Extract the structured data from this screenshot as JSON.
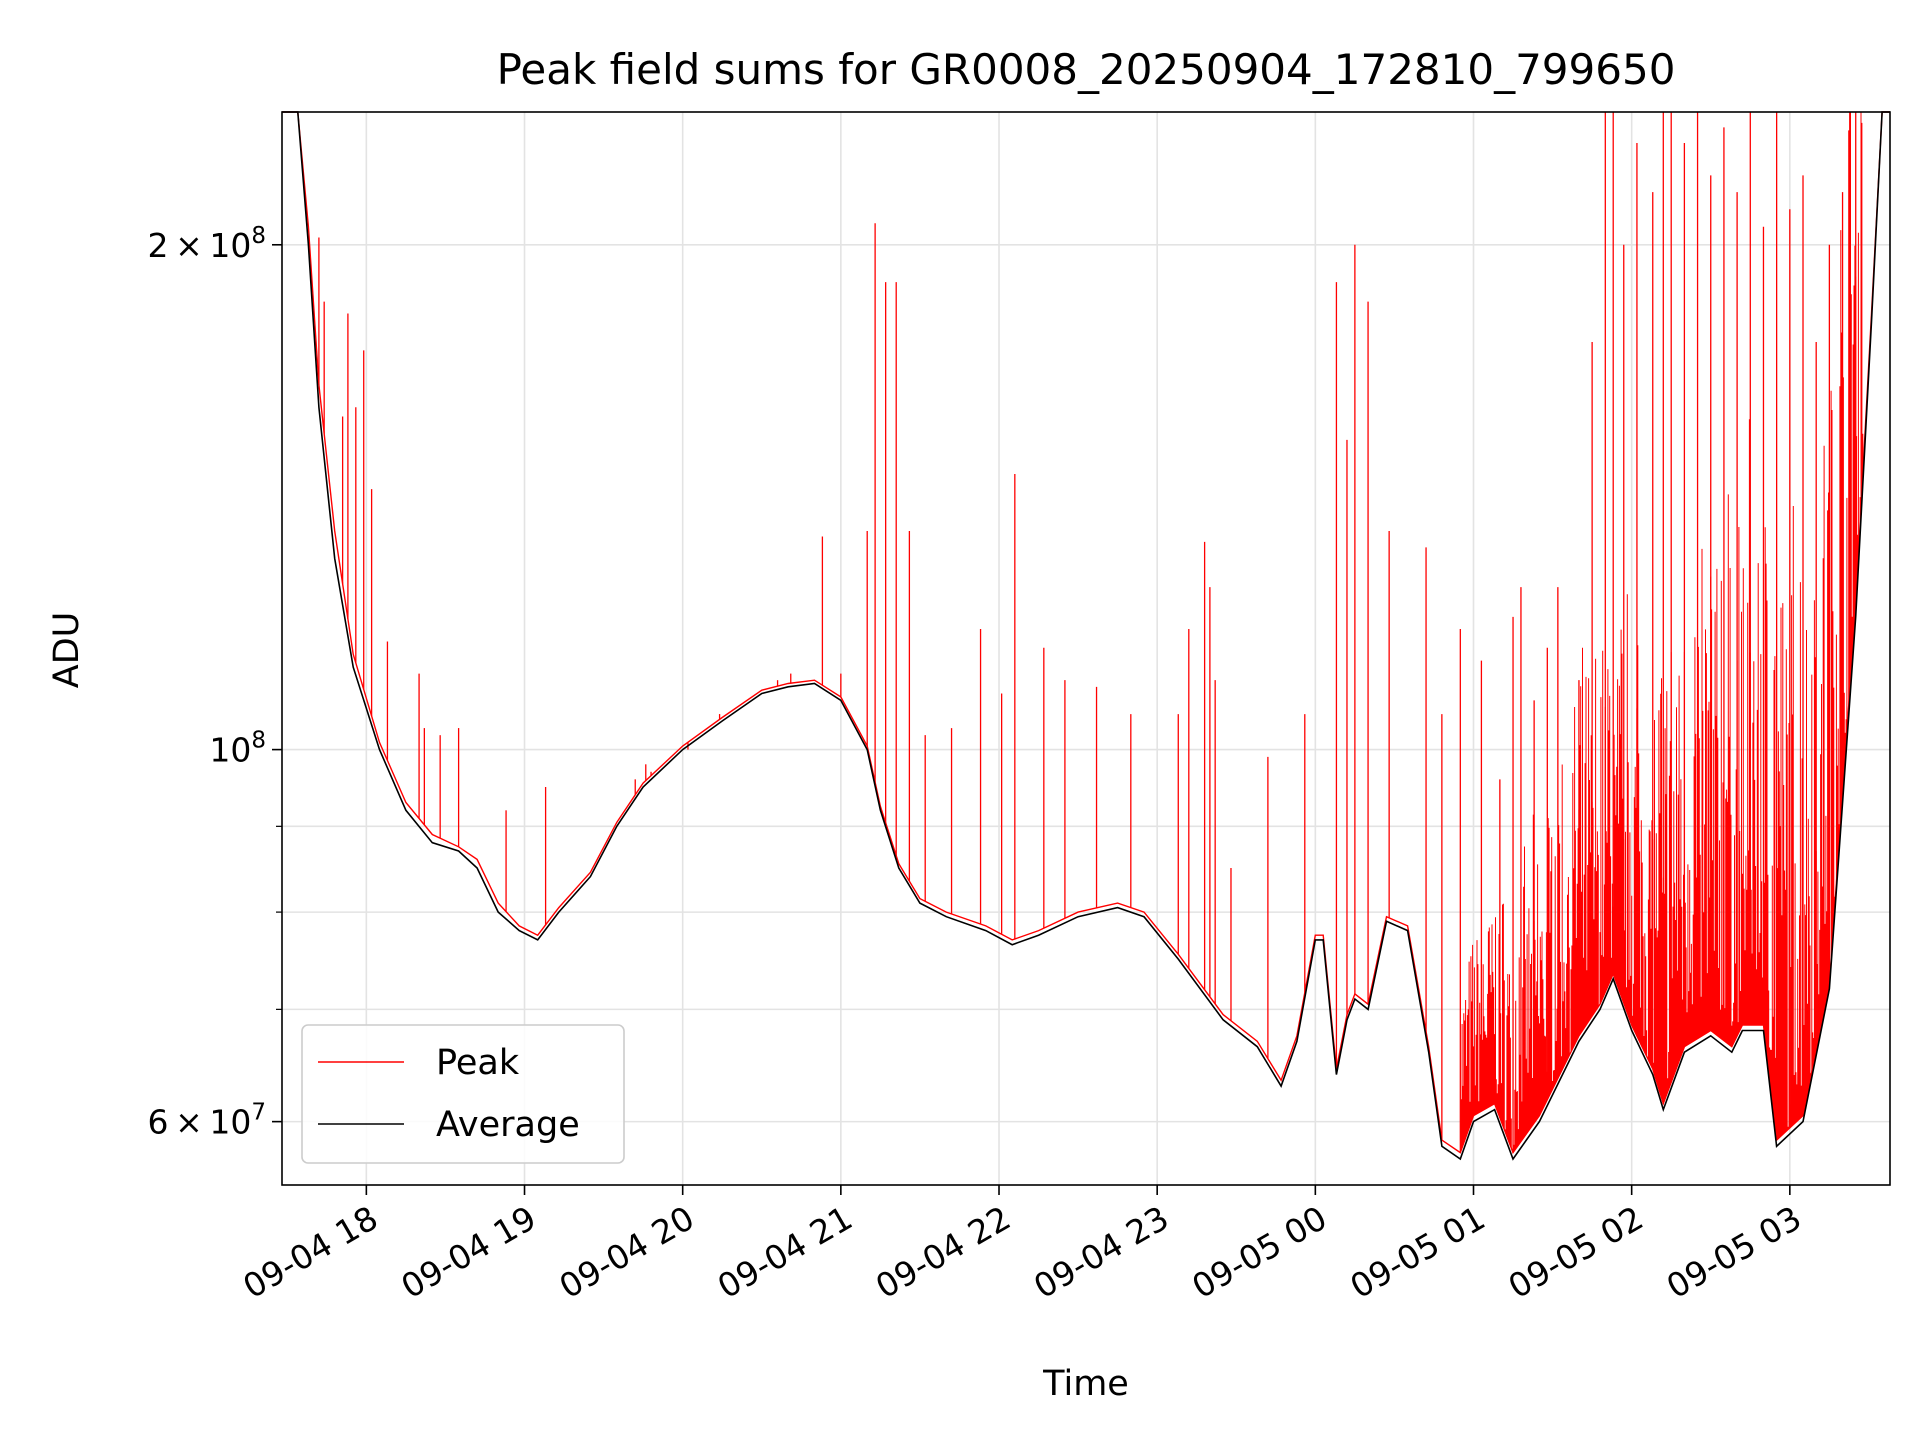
{
  "chart_data": {
    "type": "line",
    "title": "Peak field sums for GR0008_20250904_172810_799650",
    "xlabel": "Time",
    "ylabel": "ADU",
    "y_scale": "log",
    "ylim": [
      55000000,
      240000000
    ],
    "xlim": [
      "2025-09-04 17:28",
      "2025-09-05 03:38"
    ],
    "grid": true,
    "legend_position": "lower-left",
    "x_tick_labels": [
      "09-04 18",
      "09-04 19",
      "09-04 20",
      "09-04 21",
      "09-04 22",
      "09-04 23",
      "09-05 00",
      "09-05 01",
      "09-05 02",
      "09-05 03"
    ],
    "x_tick_times": [
      "2025-09-04 18:00",
      "2025-09-04 19:00",
      "2025-09-04 20:00",
      "2025-09-04 21:00",
      "2025-09-04 22:00",
      "2025-09-04 23:00",
      "2025-09-05 00:00",
      "2025-09-05 01:00",
      "2025-09-05 02:00",
      "2025-09-05 03:00"
    ],
    "y_major_ticks": [
      {
        "value": 60000000,
        "mantissa": "6",
        "exponent": "7"
      },
      {
        "value": 100000000,
        "mantissa": "",
        "exponent": "8"
      },
      {
        "value": 200000000,
        "mantissa": "2",
        "exponent": "8"
      }
    ],
    "y_minor_ticks": [
      70000000,
      80000000,
      90000000
    ],
    "series": [
      {
        "name": "Average",
        "color": "#000000",
        "x": [
          "2025-09-04 17:28",
          "2025-09-04 17:34",
          "2025-09-04 17:38",
          "2025-09-04 17:42",
          "2025-09-04 17:48",
          "2025-09-04 17:55",
          "2025-09-04 18:05",
          "2025-09-04 18:15",
          "2025-09-04 18:25",
          "2025-09-04 18:35",
          "2025-09-04 18:42",
          "2025-09-04 18:50",
          "2025-09-04 18:58",
          "2025-09-04 19:05",
          "2025-09-04 19:13",
          "2025-09-04 19:25",
          "2025-09-04 19:35",
          "2025-09-04 19:45",
          "2025-09-04 20:00",
          "2025-09-04 20:15",
          "2025-09-04 20:30",
          "2025-09-04 20:40",
          "2025-09-04 20:50",
          "2025-09-04 21:00",
          "2025-09-04 21:10",
          "2025-09-04 21:15",
          "2025-09-04 21:22",
          "2025-09-04 21:30",
          "2025-09-04 21:40",
          "2025-09-04 21:55",
          "2025-09-04 22:05",
          "2025-09-04 22:15",
          "2025-09-04 22:30",
          "2025-09-04 22:45",
          "2025-09-04 22:55",
          "2025-09-04 23:08",
          "2025-09-04 23:25",
          "2025-09-04 23:38",
          "2025-09-04 23:47",
          "2025-09-04 23:53",
          "2025-09-04 24:00",
          "2025-09-05 00:03",
          "2025-09-05 00:08",
          "2025-09-05 00:12",
          "2025-09-05 00:15",
          "2025-09-05 00:20",
          "2025-09-05 00:27",
          "2025-09-05 00:35",
          "2025-09-05 00:43",
          "2025-09-05 00:48",
          "2025-09-05 00:55",
          "2025-09-05 01:00",
          "2025-09-05 01:08",
          "2025-09-05 01:15",
          "2025-09-05 01:25",
          "2025-09-05 01:40",
          "2025-09-05 01:48",
          "2025-09-05 01:53",
          "2025-09-05 02:00",
          "2025-09-05 02:08",
          "2025-09-05 02:12",
          "2025-09-05 02:20",
          "2025-09-05 02:30",
          "2025-09-05 02:38",
          "2025-09-05 02:42",
          "2025-09-05 02:50",
          "2025-09-05 02:55",
          "2025-09-05 03:05",
          "2025-09-05 03:15",
          "2025-09-05 03:25",
          "2025-09-05 03:31",
          "2025-09-05 03:35",
          "2025-09-05 03:38"
        ],
        "y": [
          240000000,
          240000000,
          200000000,
          160000000,
          130000000,
          112000000,
          100000000,
          92000000,
          88000000,
          87000000,
          85000000,
          80000000,
          78000000,
          77000000,
          80000000,
          84000000,
          90000000,
          95000000,
          100000000,
          104000000,
          108000000,
          109000000,
          109500000,
          107000000,
          100000000,
          92000000,
          85000000,
          81000000,
          79500000,
          78000000,
          76500000,
          77500000,
          79500000,
          80500000,
          79500000,
          75000000,
          69000000,
          66500000,
          63000000,
          67000000,
          77000000,
          77000000,
          64000000,
          69000000,
          71000000,
          70000000,
          79000000,
          78000000,
          66000000,
          58000000,
          57000000,
          60000000,
          61000000,
          57000000,
          60000000,
          67000000,
          70000000,
          73000000,
          68000000,
          64000000,
          61000000,
          66000000,
          67500000,
          66000000,
          68000000,
          68000000,
          58000000,
          60000000,
          72000000,
          120000000,
          180000000,
          240000000,
          240000000
        ]
      },
      {
        "name": "Peak",
        "color": "#ff0000",
        "x": [
          "2025-09-04 17:28",
          "2025-09-04 17:34",
          "2025-09-04 17:38",
          "2025-09-04 17:42",
          "2025-09-04 17:48",
          "2025-09-04 17:55",
          "2025-09-04 18:05",
          "2025-09-04 18:15",
          "2025-09-04 18:25",
          "2025-09-04 18:35",
          "2025-09-04 18:42",
          "2025-09-04 18:50",
          "2025-09-04 18:58",
          "2025-09-04 19:05",
          "2025-09-04 19:13",
          "2025-09-04 19:25",
          "2025-09-04 19:35",
          "2025-09-04 19:45",
          "2025-09-04 20:00",
          "2025-09-04 20:15",
          "2025-09-04 20:30",
          "2025-09-04 20:40",
          "2025-09-04 20:50",
          "2025-09-04 21:00",
          "2025-09-04 21:10",
          "2025-09-04 21:15",
          "2025-09-04 21:22",
          "2025-09-04 21:30",
          "2025-09-04 21:40",
          "2025-09-04 21:55",
          "2025-09-04 22:05",
          "2025-09-04 22:15",
          "2025-09-04 22:30",
          "2025-09-04 22:45",
          "2025-09-04 22:55",
          "2025-09-04 23:08",
          "2025-09-04 23:25",
          "2025-09-04 23:38",
          "2025-09-04 23:47",
          "2025-09-04 23:53",
          "2025-09-04 24:00",
          "2025-09-05 00:03",
          "2025-09-05 00:08",
          "2025-09-05 00:12",
          "2025-09-05 00:15",
          "2025-09-05 00:20",
          "2025-09-05 00:27",
          "2025-09-05 00:35",
          "2025-09-05 00:43",
          "2025-09-05 00:48",
          "2025-09-05 00:55",
          "2025-09-05 01:00",
          "2025-09-05 01:08",
          "2025-09-05 01:15",
          "2025-09-05 01:25",
          "2025-09-05 01:40",
          "2025-09-05 01:48",
          "2025-09-05 01:53",
          "2025-09-05 02:00",
          "2025-09-05 02:08",
          "2025-09-05 02:12",
          "2025-09-05 02:20",
          "2025-09-05 02:30",
          "2025-09-05 02:38",
          "2025-09-05 02:42",
          "2025-09-05 02:50",
          "2025-09-05 02:55",
          "2025-09-05 03:05",
          "2025-09-05 03:15",
          "2025-09-05 03:25",
          "2025-09-05 03:31",
          "2025-09-05 03:35",
          "2025-09-05 03:38"
        ],
        "y": [
          240000000,
          240000000,
          205000000,
          165000000,
          135000000,
          114000000,
          101000000,
          93000000,
          89000000,
          87500000,
          86000000,
          81000000,
          78500000,
          77500000,
          80500000,
          84500000,
          90500000,
          95500000,
          100500000,
          104500000,
          108500000,
          109500000,
          110000000,
          107500000,
          100500000,
          92500000,
          85500000,
          81500000,
          80000000,
          78500000,
          77000000,
          78000000,
          80000000,
          81000000,
          80000000,
          75500000,
          69500000,
          67000000,
          63500000,
          67500000,
          77500000,
          77500000,
          64500000,
          69500000,
          71500000,
          70500000,
          79500000,
          78500000,
          66500000,
          58500000,
          57500000,
          60500000,
          61500000,
          57500000,
          60500000,
          67500000,
          70500000,
          73500000,
          68500000,
          64500000,
          61500000,
          66500000,
          68000000,
          66500000,
          68500000,
          68500000,
          58500000,
          60500000,
          72500000,
          122000000,
          182000000,
          240000000,
          240000000
        ]
      }
    ],
    "peak_spikes": [
      [
        "2025-09-04 17:42",
        202000000
      ],
      [
        "2025-09-04 17:44",
        185000000
      ],
      [
        "2025-09-04 17:51",
        158000000
      ],
      [
        "2025-09-04 17:53",
        182000000
      ],
      [
        "2025-09-04 17:56",
        160000000
      ],
      [
        "2025-09-04 17:59",
        173000000
      ],
      [
        "2025-09-04 18:02",
        143000000
      ],
      [
        "2025-09-04 18:08",
        116000000
      ],
      [
        "2025-09-04 18:20",
        111000000
      ],
      [
        "2025-09-04 18:22",
        103000000
      ],
      [
        "2025-09-04 18:28",
        102000000
      ],
      [
        "2025-09-04 18:35",
        103000000
      ],
      [
        "2025-09-04 18:53",
        92000000
      ],
      [
        "2025-09-04 19:08",
        95000000
      ],
      [
        "2025-09-04 19:42",
        96000000
      ],
      [
        "2025-09-04 19:46",
        98000000
      ],
      [
        "2025-09-04 19:48",
        97000000
      ],
      [
        "2025-09-04 20:02",
        100000000
      ],
      [
        "2025-09-04 20:14",
        105000000
      ],
      [
        "2025-09-04 20:36",
        110000000
      ],
      [
        "2025-09-04 20:41",
        111000000
      ],
      [
        "2025-09-04 20:53",
        134000000
      ],
      [
        "2025-09-04 21:00",
        111000000
      ],
      [
        "2025-09-04 21:10",
        135000000
      ],
      [
        "2025-09-04 21:13",
        206000000
      ],
      [
        "2025-09-04 21:17",
        190000000
      ],
      [
        "2025-09-04 21:21",
        190000000
      ],
      [
        "2025-09-04 21:26",
        135000000
      ],
      [
        "2025-09-04 21:32",
        102000000
      ],
      [
        "2025-09-04 21:42",
        103000000
      ],
      [
        "2025-09-04 21:53",
        118000000
      ],
      [
        "2025-09-04 22:01",
        108000000
      ],
      [
        "2025-09-04 22:06",
        146000000
      ],
      [
        "2025-09-04 22:17",
        115000000
      ],
      [
        "2025-09-04 22:25",
        110000000
      ],
      [
        "2025-09-04 22:37",
        109000000
      ],
      [
        "2025-09-04 22:50",
        105000000
      ],
      [
        "2025-09-04 23:08",
        105000000
      ],
      [
        "2025-09-04 23:12",
        118000000
      ],
      [
        "2025-09-04 23:18",
        133000000
      ],
      [
        "2025-09-04 23:20",
        125000000
      ],
      [
        "2025-09-04 23:22",
        110000000
      ],
      [
        "2025-09-04 23:28",
        85000000
      ],
      [
        "2025-09-04 23:42",
        99000000
      ],
      [
        "2025-09-04 23:56",
        105000000
      ],
      [
        "2025-09-05 00:08",
        190000000
      ],
      [
        "2025-09-05 00:12",
        153000000
      ],
      [
        "2025-09-05 00:15",
        200000000
      ],
      [
        "2025-09-05 00:20",
        185000000
      ],
      [
        "2025-09-05 00:28",
        135000000
      ],
      [
        "2025-09-05 00:42",
        132000000
      ],
      [
        "2025-09-05 00:48",
        105000000
      ],
      [
        "2025-09-05 00:55",
        118000000
      ],
      [
        "2025-09-05 01:03",
        113000000
      ],
      [
        "2025-09-05 01:10",
        96000000
      ],
      [
        "2025-09-05 01:15",
        120000000
      ],
      [
        "2025-09-05 01:18",
        125000000
      ],
      [
        "2025-09-05 01:23",
        107000000
      ],
      [
        "2025-09-05 01:28",
        115000000
      ],
      [
        "2025-09-05 01:32",
        125000000
      ],
      [
        "2025-09-05 01:40",
        110000000
      ],
      [
        "2025-09-05 01:45",
        175000000
      ],
      [
        "2025-09-05 01:50",
        240000000
      ],
      [
        "2025-09-05 01:53",
        240000000
      ],
      [
        "2025-09-05 01:57",
        200000000
      ],
      [
        "2025-09-05 02:02",
        230000000
      ],
      [
        "2025-09-05 02:08",
        215000000
      ],
      [
        "2025-09-05 02:12",
        240000000
      ],
      [
        "2025-09-05 02:15",
        240000000
      ],
      [
        "2025-09-05 02:20",
        230000000
      ],
      [
        "2025-09-05 02:25",
        240000000
      ],
      [
        "2025-09-05 02:30",
        220000000
      ],
      [
        "2025-09-05 02:35",
        235000000
      ],
      [
        "2025-09-05 02:40",
        215000000
      ],
      [
        "2025-09-05 02:45",
        240000000
      ],
      [
        "2025-09-05 02:50",
        205000000
      ],
      [
        "2025-09-05 02:55",
        240000000
      ],
      [
        "2025-09-05 03:00",
        210000000
      ],
      [
        "2025-09-05 03:05",
        220000000
      ],
      [
        "2025-09-05 03:10",
        175000000
      ],
      [
        "2025-09-05 03:15",
        200000000
      ],
      [
        "2025-09-05 03:20",
        215000000
      ],
      [
        "2025-09-05 03:25",
        240000000
      ]
    ],
    "band_start": "2025-09-05 00:55"
  }
}
